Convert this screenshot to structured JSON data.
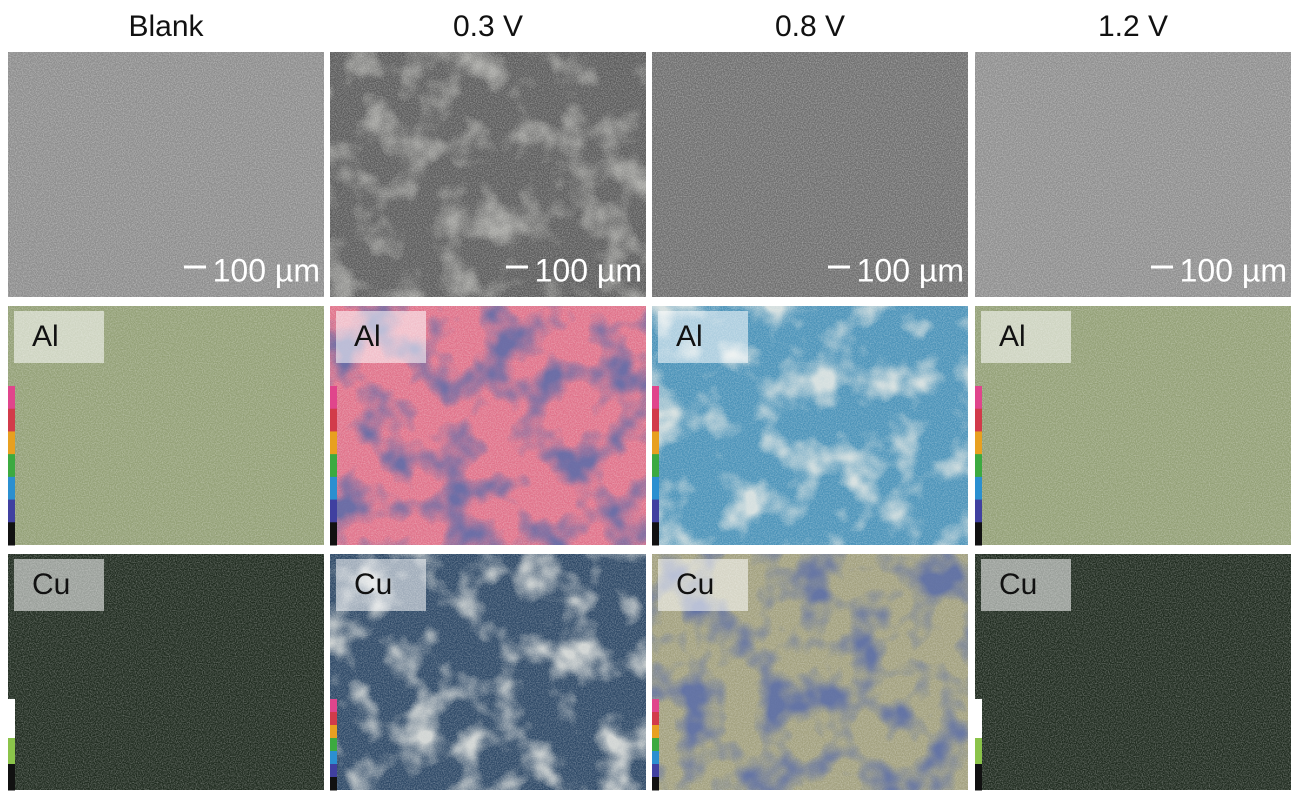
{
  "columns": [
    {
      "title": "Blank",
      "scale_bar": "100 µm",
      "maps": [
        "Al",
        "Cu"
      ]
    },
    {
      "title": "0.3 V",
      "scale_bar": "100 µm",
      "maps": [
        "Al",
        "Cu"
      ]
    },
    {
      "title": "0.8 V",
      "scale_bar": "100 µm",
      "maps": [
        "Al",
        "Cu"
      ]
    },
    {
      "title": "1.2 V",
      "scale_bar": "100 µm",
      "maps": [
        "Al",
        "Cu"
      ]
    }
  ]
}
